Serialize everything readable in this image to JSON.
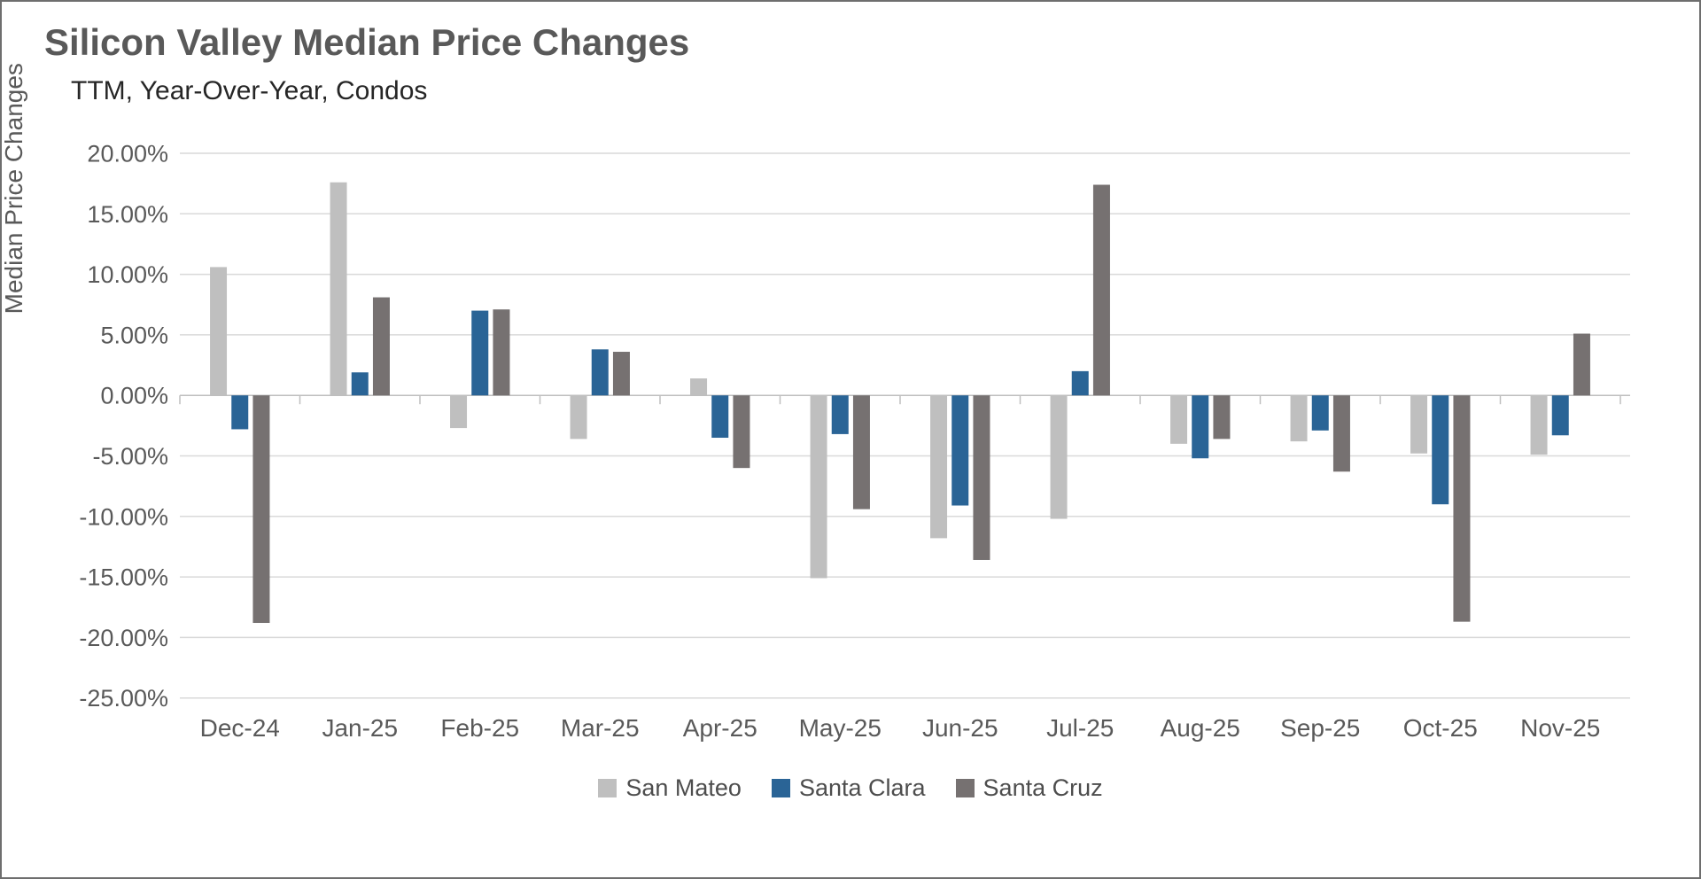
{
  "chart_data": {
    "type": "bar",
    "title": "Silicon Valley Median Price Changes",
    "subtitle": "TTM, Year-Over-Year, Condos",
    "ylabel": "Median Price Changes",
    "xlabel": "",
    "categories": [
      "Dec-24",
      "Jan-25",
      "Feb-25",
      "Mar-25",
      "Apr-25",
      "May-25",
      "Jun-25",
      "Jul-25",
      "Aug-25",
      "Sep-25",
      "Oct-25",
      "Nov-25"
    ],
    "series": [
      {
        "name": "San Mateo",
        "color": "#BFBFBF",
        "values": [
          10.6,
          17.6,
          -2.7,
          -3.6,
          1.4,
          -15.1,
          -11.8,
          -10.2,
          -4.0,
          -3.8,
          -4.8,
          -4.9
        ]
      },
      {
        "name": "Santa Clara",
        "color": "#2A6496",
        "values": [
          -2.8,
          1.9,
          7.0,
          3.8,
          -3.5,
          -3.2,
          -9.1,
          2.0,
          -5.2,
          -2.9,
          -9.0,
          -3.3
        ]
      },
      {
        "name": "Santa Cruz",
        "color": "#767171",
        "values": [
          -18.8,
          8.1,
          7.1,
          3.6,
          -6.0,
          -9.4,
          -13.6,
          17.4,
          -3.6,
          -6.3,
          -18.7,
          5.1
        ]
      }
    ],
    "ylim": [
      -25,
      20
    ],
    "ytick_step": 5,
    "ytick_labels": [
      "20.00%",
      "15.00%",
      "10.00%",
      "5.00%",
      "0.00%",
      "-5.00%",
      "-10.00%",
      "-15.00%",
      "-20.00%",
      "-25.00%"
    ],
    "grid": true,
    "legend_position": "bottom",
    "colors": {
      "gridline": "#D9D9D9",
      "axis_line": "#BFBFBF",
      "tick_label": "#595959",
      "title": "#595959",
      "subtitle": "#262626",
      "legend_text": "#4d4d4d"
    }
  }
}
